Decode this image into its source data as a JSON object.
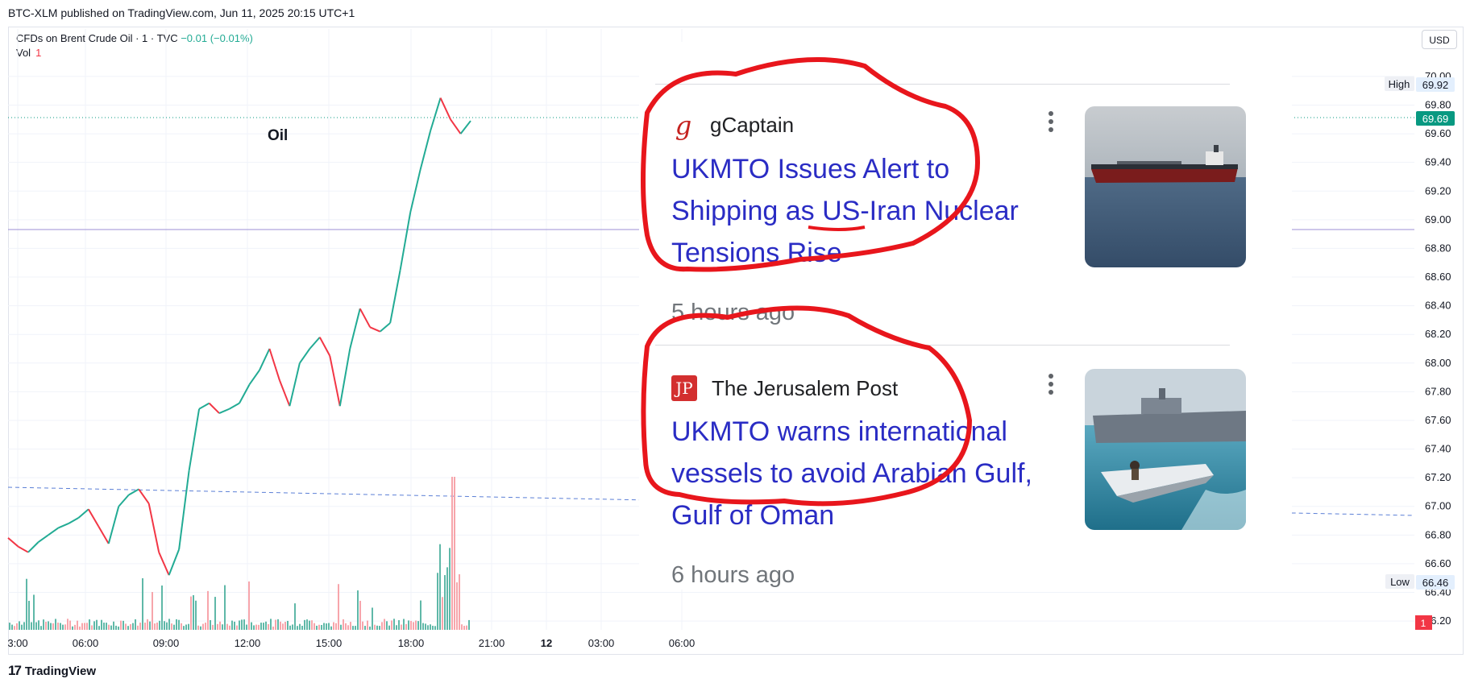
{
  "header": {
    "publish_text": "BTC-XLM published on TradingView.com, Jun 11, 2025 20:15 UTC+1",
    "symbol": "CFDs on Brent Crude Oil · 1 · TVC",
    "change": "−0.01 (−0.01%)",
    "vol_label": "Vol",
    "vol_value": "1",
    "currency": "USD"
  },
  "footer": {
    "logo_text": "TradingView"
  },
  "chart_data": {
    "type": "line",
    "title": "Oil",
    "x_ticks": [
      "3:00",
      "06:00",
      "09:00",
      "12:00",
      "15:00",
      "18:00",
      "21:00",
      "12",
      "03:00",
      "06:00"
    ],
    "y_ticks": [
      "70.00",
      "69.80",
      "69.60",
      "69.40",
      "69.20",
      "69.00",
      "68.80",
      "68.60",
      "68.40",
      "68.20",
      "68.00",
      "67.80",
      "67.60",
      "67.40",
      "67.20",
      "67.00",
      "66.80",
      "66.60",
      "66.40",
      "66.20"
    ],
    "ylim": [
      66.15,
      70.05
    ],
    "series": [
      {
        "values": [
          66.78,
          66.72,
          66.68,
          66.75,
          66.8,
          66.85,
          66.88,
          66.92,
          66.98,
          66.86,
          66.74,
          67.0,
          67.08,
          67.12,
          67.02,
          66.68,
          66.52,
          66.7,
          67.25,
          67.68,
          67.72,
          67.65,
          67.68,
          67.72,
          67.85,
          67.95,
          68.1,
          67.88,
          67.7,
          68.0,
          68.1,
          68.18,
          68.05,
          67.7,
          68.1,
          68.38,
          68.25,
          68.22,
          68.28,
          68.65,
          69.05,
          69.35,
          69.62,
          69.85,
          69.7,
          69.6,
          69.69
        ]
      }
    ],
    "price_labels": {
      "high_label": "High",
      "high_value": "69.92",
      "last_value": "69.69",
      "low_label": "Low",
      "low_value": "66.46",
      "event_badge": "1"
    },
    "colors": {
      "up": "#22ab94",
      "down": "#f23645",
      "last_price": "#089981",
      "hline": "#9c8fd6",
      "dashed": "#5b7fd6"
    }
  },
  "news": {
    "items": [
      {
        "source": "gCaptain",
        "logo_text": "g",
        "headline": "UKMTO Issues Alert to Shipping as US-Iran Nuclear Tensions Rise",
        "time_ago": "5 hours ago"
      },
      {
        "source": "The Jerusalem Post",
        "logo_text": "JP",
        "headline": "UKMTO warns international vessels to avoid Arabian Gulf, Gulf of Oman",
        "time_ago": "6 hours ago"
      }
    ]
  }
}
